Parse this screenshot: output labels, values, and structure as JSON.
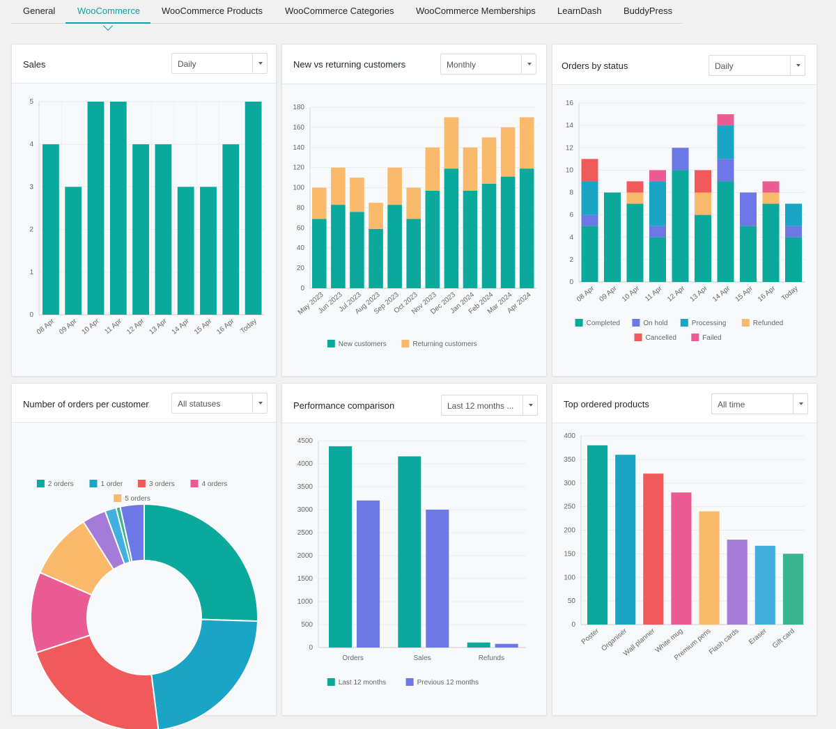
{
  "tabs": [
    {
      "label": "General",
      "active": false
    },
    {
      "label": "WooCommerce",
      "active": true
    },
    {
      "label": "WooCommerce Products",
      "active": false
    },
    {
      "label": "WooCommerce Categories",
      "active": false
    },
    {
      "label": "WooCommerce Memberships",
      "active": false
    },
    {
      "label": "LearnDash",
      "active": false
    },
    {
      "label": "BuddyPress",
      "active": false
    }
  ],
  "colors": {
    "teal": "#0ba99c",
    "cyan": "#1aa5c7",
    "red": "#f05a5a",
    "pink": "#eb5c94",
    "orange": "#fbb96b",
    "purple": "#a57ad9",
    "blue": "#6b78e5",
    "sky": "#43aee0",
    "green": "#38b58c",
    "accent": "#11a0a0"
  },
  "panels": {
    "sales": {
      "title": "Sales",
      "select": "Daily"
    },
    "customers": {
      "title": "New vs returning customers",
      "select": "Monthly"
    },
    "status": {
      "title": "Orders by status",
      "select": "Daily"
    },
    "per_customer": {
      "title": "Number of orders per customer",
      "select": "All statuses"
    },
    "performance": {
      "title": "Performance comparison",
      "select": "Last 12 months ..."
    },
    "products": {
      "title": "Top ordered products",
      "select": "All time"
    }
  },
  "chart_data": [
    {
      "id": "sales",
      "type": "bar",
      "categories": [
        "08 Apr",
        "09 Apr",
        "10 Apr",
        "11 Apr",
        "12 Apr",
        "13 Apr",
        "14 Apr",
        "15 Apr",
        "16 Apr",
        "Today"
      ],
      "values": [
        4,
        3,
        5,
        5,
        4,
        4,
        3,
        3,
        4,
        5
      ],
      "yticks": [
        "0",
        "1",
        "2",
        "3",
        "4",
        "5"
      ],
      "ylim": [
        0,
        5
      ],
      "grid": true,
      "color": "#0ba99c"
    },
    {
      "id": "customers",
      "type": "bar",
      "stacked": true,
      "categories": [
        "May 2023",
        "Jun 2023",
        "Jul 2023",
        "Aug 2023",
        "Sep 2023",
        "Oct 2023",
        "Nov 2023",
        "Dec 2023",
        "Jan 2024",
        "Feb 2024",
        "Mar 2024",
        "Apr 2024"
      ],
      "series": [
        {
          "name": "New customers",
          "color": "#0ba99c",
          "values": [
            69,
            83,
            76,
            59,
            83,
            69,
            97,
            119,
            97,
            104,
            111,
            119
          ]
        },
        {
          "name": "Returning customers",
          "color": "#fbb96b",
          "values": [
            31,
            37,
            34,
            26,
            37,
            31,
            43,
            51,
            43,
            46,
            49,
            51
          ]
        }
      ],
      "yticks": [
        "0",
        "20",
        "40",
        "60",
        "80",
        "100",
        "120",
        "140",
        "160",
        "180"
      ],
      "ylim": [
        0,
        180
      ],
      "grid": true,
      "legend": "bottom"
    },
    {
      "id": "status",
      "type": "bar",
      "stacked": true,
      "categories": [
        "08 Apr",
        "09 Apr",
        "10 Apr",
        "11 Apr",
        "12 Apr",
        "13 Apr",
        "14 Apr",
        "15 Apr",
        "16 Apr",
        "Today"
      ],
      "series": [
        {
          "name": "Completed",
          "color": "#0ba99c",
          "values": [
            5,
            8,
            7,
            4,
            10,
            6,
            9,
            5,
            7,
            4
          ]
        },
        {
          "name": "On hold",
          "color": "#6b78e5",
          "values": [
            1,
            0,
            0,
            1,
            2,
            0,
            2,
            3,
            0,
            1
          ]
        },
        {
          "name": "Processing",
          "color": "#1aa5c7",
          "values": [
            3,
            0,
            0,
            4,
            0,
            0,
            3,
            0,
            0,
            2
          ]
        },
        {
          "name": "Refunded",
          "color": "#fbb96b",
          "values": [
            0,
            0,
            1,
            0,
            0,
            2,
            0,
            0,
            1,
            0
          ]
        },
        {
          "name": "Cancelled",
          "color": "#f05a5a",
          "values": [
            2,
            0,
            1,
            0,
            0,
            2,
            0,
            0,
            0,
            0
          ]
        },
        {
          "name": "Failed",
          "color": "#eb5c94",
          "values": [
            0,
            0,
            0,
            1,
            0,
            0,
            1,
            0,
            1,
            0
          ]
        }
      ],
      "yticks": [
        "0",
        "2",
        "4",
        "6",
        "8",
        "10",
        "12",
        "14",
        "16"
      ],
      "ylim": [
        0,
        16
      ],
      "grid": true,
      "legend": "bottom"
    },
    {
      "id": "per_customer",
      "type": "pie",
      "donut": true,
      "slices": [
        {
          "label": "2 orders",
          "value": 25.5,
          "color": "#0ba99c"
        },
        {
          "label": "1 order",
          "value": 22.5,
          "color": "#1aa5c7"
        },
        {
          "label": "3 orders",
          "value": 22,
          "color": "#f05a5a"
        },
        {
          "label": "4 orders",
          "value": 11.5,
          "color": "#eb5c94"
        },
        {
          "label": "5 orders",
          "value": 9.5,
          "color": "#fbb96b"
        },
        {
          "label": "",
          "value": 3.4,
          "color": "#a57ad9"
        },
        {
          "label": "",
          "value": 1.6,
          "color": "#43aee0"
        },
        {
          "label": "",
          "value": 0.6,
          "color": "#38b58c"
        },
        {
          "label": "",
          "value": 3.4,
          "color": "#6b78e5"
        }
      ],
      "legend": "top"
    },
    {
      "id": "performance",
      "type": "bar",
      "categories": [
        "Orders",
        "Sales",
        "Refunds"
      ],
      "series": [
        {
          "name": "Last 12 months",
          "color": "#0ba99c",
          "values": [
            4380,
            4160,
            110
          ]
        },
        {
          "name": "Previous 12 months",
          "color": "#6b78e5",
          "values": [
            3200,
            3000,
            80
          ]
        }
      ],
      "yticks": [
        "0",
        "500",
        "1000",
        "1500",
        "2000",
        "2500",
        "3000",
        "3500",
        "4000",
        "4500"
      ],
      "ylim": [
        0,
        4500
      ],
      "grid": true,
      "legend": "bottom"
    },
    {
      "id": "products",
      "type": "bar",
      "categories": [
        "Poster",
        "Organiser",
        "Wall planner",
        "White mug",
        "Premium pens",
        "Flash cards",
        "Eraser",
        "Gift card"
      ],
      "values": [
        380,
        360,
        320,
        280,
        240,
        180,
        167,
        150
      ],
      "colors": [
        "#0ba99c",
        "#1aa5c7",
        "#f05a5a",
        "#eb5c94",
        "#fbb96b",
        "#a57ad9",
        "#43aee0",
        "#38b58c"
      ],
      "yticks": [
        "0",
        "50",
        "100",
        "150",
        "200",
        "250",
        "300",
        "350",
        "400"
      ],
      "ylim": [
        0,
        400
      ],
      "grid": true
    }
  ]
}
